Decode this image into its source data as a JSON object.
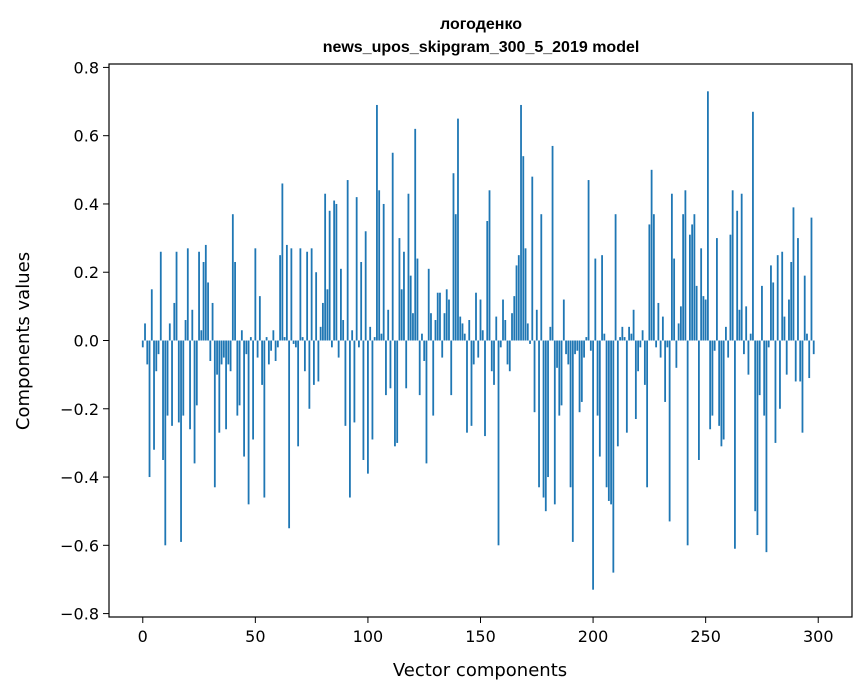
{
  "chart_data": {
    "type": "bar",
    "title_line1": "логоденко",
    "title_line2": "news_upos_skipgram_300_5_2019 model",
    "xlabel": "Vector components",
    "ylabel": "Components values",
    "xlim": [
      -15,
      315
    ],
    "ylim": [
      -0.81,
      0.81
    ],
    "xticks": [
      0,
      50,
      100,
      150,
      200,
      250,
      300
    ],
    "xtick_labels": [
      "0",
      "50",
      "100",
      "150",
      "200",
      "250",
      "300"
    ],
    "yticks": [
      -0.8,
      -0.6,
      -0.4,
      -0.2,
      0.0,
      0.2,
      0.4,
      0.6,
      0.8
    ],
    "ytick_labels": [
      "−0.8",
      "−0.6",
      "−0.4",
      "−0.2",
      "0.0",
      "0.2",
      "0.4",
      "0.6",
      "0.8"
    ],
    "bar_color": "#1f77b4",
    "grid": false,
    "values": [
      -0.02,
      0.05,
      -0.07,
      -0.4,
      0.15,
      -0.32,
      -0.09,
      -0.04,
      0.26,
      -0.35,
      -0.6,
      -0.22,
      0.05,
      -0.25,
      0.11,
      0.26,
      -0.24,
      -0.59,
      -0.22,
      0.06,
      0.27,
      -0.26,
      0.09,
      -0.36,
      -0.19,
      0.26,
      0.03,
      0.23,
      0.28,
      0.17,
      -0.06,
      0.11,
      -0.43,
      -0.1,
      -0.27,
      -0.07,
      -0.05,
      -0.26,
      -0.07,
      -0.09,
      0.37,
      0.23,
      -0.22,
      -0.19,
      0.03,
      -0.34,
      -0.04,
      -0.48,
      0.01,
      -0.29,
      0.27,
      -0.05,
      0.13,
      -0.13,
      -0.46,
      0.01,
      -0.07,
      -0.03,
      0.03,
      -0.06,
      -0.02,
      0.25,
      0.46,
      0.01,
      0.28,
      -0.55,
      0.27,
      -0.01,
      -0.02,
      -0.31,
      0.27,
      0.01,
      -0.09,
      0.26,
      -0.2,
      0.27,
      -0.13,
      0.2,
      -0.12,
      0.04,
      0.11,
      0.43,
      0.15,
      0.38,
      -0.02,
      0.41,
      0.4,
      -0.05,
      0.21,
      0.06,
      -0.25,
      0.47,
      -0.46,
      0.03,
      -0.24,
      0.42,
      -0.02,
      0.23,
      -0.35,
      0.32,
      -0.39,
      0.04,
      -0.29,
      0.01,
      0.69,
      0.44,
      0.02,
      0.4,
      -0.16,
      0.09,
      -0.14,
      0.55,
      -0.31,
      -0.3,
      0.3,
      0.15,
      0.26,
      -0.14,
      0.43,
      0.19,
      0.08,
      0.62,
      0.24,
      -0.16,
      0.02,
      -0.06,
      -0.36,
      0.21,
      0.08,
      -0.22,
      0.06,
      0.14,
      0.14,
      -0.05,
      0.08,
      0.15,
      0.12,
      -0.16,
      0.49,
      0.37,
      0.65,
      0.07,
      0.05,
      0.02,
      -0.27,
      0.06,
      -0.25,
      -0.07,
      0.14,
      -0.05,
      0.12,
      0.03,
      -0.28,
      0.35,
      0.44,
      -0.09,
      -0.13,
      0.07,
      -0.6,
      -0.02,
      0.12,
      0.06,
      -0.07,
      -0.09,
      0.08,
      0.13,
      0.22,
      0.25,
      0.69,
      0.54,
      0.27,
      0.05,
      -0.01,
      0.48,
      -0.21,
      0.09,
      -0.43,
      0.37,
      -0.46,
      -0.5,
      -0.4,
      0.04,
      0.57,
      -0.48,
      -0.08,
      -0.22,
      -0.19,
      0.12,
      -0.04,
      -0.07,
      -0.43,
      -0.59,
      -0.04,
      -0.03,
      -0.21,
      -0.18,
      -0.05,
      0.01,
      0.47,
      -0.03,
      -0.73,
      0.24,
      -0.22,
      -0.34,
      0.25,
      0.02,
      -0.43,
      -0.47,
      -0.48,
      -0.68,
      0.37,
      -0.31,
      0.01,
      0.04,
      0.01,
      -0.27,
      0.04,
      0.02,
      0.09,
      -0.23,
      -0.09,
      -0.02,
      0.03,
      -0.13,
      -0.43,
      0.34,
      0.5,
      0.37,
      -0.02,
      0.11,
      -0.05,
      0.07,
      -0.18,
      -0.02,
      -0.53,
      0.43,
      0.24,
      -0.08,
      0.05,
      0.1,
      0.37,
      0.44,
      -0.6,
      0.31,
      0.34,
      0.37,
      0.16,
      -0.35,
      0.27,
      0.13,
      0.12,
      0.73,
      -0.26,
      -0.22,
      -0.03,
      0.3,
      -0.25,
      -0.31,
      -0.29,
      0.04,
      -0.05,
      0.31,
      0.44,
      -0.61,
      0.38,
      0.09,
      0.43,
      -0.04,
      0.1,
      -0.1,
      0.02,
      0.67,
      -0.5,
      -0.57,
      -0.16,
      0.16,
      -0.22,
      -0.62,
      -0.02,
      0.22,
      0.17,
      -0.3,
      0.25,
      -0.2,
      0.26,
      0.07,
      -0.1,
      0.12,
      0.23,
      0.39,
      -0.12,
      0.3,
      -0.12,
      -0.27,
      0.19,
      0.02,
      -0.11,
      0.36,
      -0.04
    ]
  }
}
